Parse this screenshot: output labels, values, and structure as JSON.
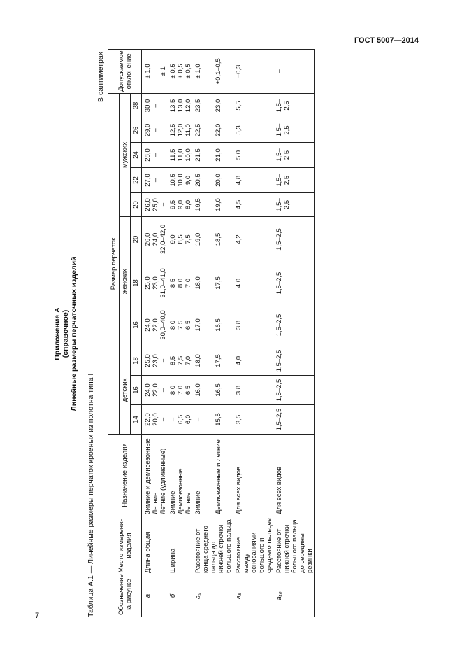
{
  "header": {
    "standard": "ГОСТ 5007—2014"
  },
  "title": {
    "appendix": "Приложение А",
    "note": "(справочное)",
    "name": "Линейные размеры перчаточных изделий"
  },
  "table": {
    "caption": "Таблица А.1 — Линейные размеры перчаток кроеных из полотна типа I",
    "units": "В сантиметрах",
    "headers": {
      "designation": "Обозначение на рисунке",
      "place": "Место измерения изделия",
      "purpose": "Назначение изделия",
      "size": "Размер перчаток",
      "tolerance": "Допускаемое отклонение",
      "groups": [
        {
          "name": "детских",
          "sizes": [
            "14",
            "16",
            "18"
          ]
        },
        {
          "name": "женских",
          "sizes": [
            "16",
            "18",
            "20"
          ]
        },
        {
          "name": "мужских",
          "sizes": [
            "20",
            "22",
            "24",
            "26",
            "28"
          ]
        }
      ]
    },
    "rows": [
      {
        "designation": "a",
        "place": "Длина общая",
        "lines": [
          {
            "purpose": "Зимние и демисезонные",
            "values": [
              "22,0",
              "24,0",
              "25,0",
              "24,0",
              "25,0",
              "26,0",
              "26,0",
              "27,0",
              "28,0",
              "29,0",
              "30,0"
            ],
            "tolerance": "± 1,0"
          },
          {
            "purpose": "Летние",
            "values": [
              "20,0",
              "22,0",
              "23,0",
              "22,0",
              "23,0",
              "24,0",
              "25,0",
              "–",
              "–",
              "–",
              "–"
            ],
            "tolerance": null
          },
          {
            "purpose": "Летние (удлиненные)",
            "values": [
              "–",
              "–",
              "–",
              "30,0–40,0",
              "31,0–41,0",
              "32,0–42,0",
              "–",
              null,
              null,
              null,
              null
            ],
            "tolerance": "± 1"
          }
        ]
      },
      {
        "designation": "б",
        "place": "Ширина",
        "lines": [
          {
            "purpose": "Зимние",
            "values": [
              "–",
              "8,0",
              "8,5",
              "8,0",
              "8,5",
              "9,0",
              "9,5",
              "10,5",
              "11,5",
              "12,5",
              "13,5"
            ],
            "tolerance": "± 0,5"
          },
          {
            "purpose": "Демисезонные",
            "values": [
              "6,5",
              "7,0",
              "7,5",
              "7,5",
              "8,0",
              "8,5",
              "9,0",
              "10,0",
              "11,0",
              "12,0",
              "13,0"
            ],
            "tolerance": "± 0,5"
          },
          {
            "purpose": "Летние",
            "values": [
              "6,0",
              "6,5",
              "7,0",
              "6,5",
              "7,0",
              "7,5",
              "8,0",
              "9,0",
              "10,0",
              "11,0",
              "12,0"
            ],
            "tolerance": "± 0,5"
          }
        ]
      },
      {
        "designation": "a₉",
        "place": "Расстояние от конца среднего пальца до нижней строчки большого пальца",
        "lines": [
          {
            "purpose": "Зимние",
            "values": [
              "–",
              "16,0",
              "18,0",
              "17,0",
              "18,0",
              "19,0",
              "19,5",
              "20,5",
              "21,5",
              "22,5",
              "23,5"
            ],
            "tolerance": "± 1,0"
          },
          {
            "purpose": "Демисезонные и летние",
            "values": [
              "15,5",
              "16,5",
              "17,5",
              "16,5",
              "17,5",
              "18,5",
              "19,0",
              "20,0",
              "21,0",
              "22,0",
              "23,0"
            ],
            "tolerance": "+0,1–0,5"
          }
        ]
      },
      {
        "designation": "a₈",
        "place": "Расстояние между основаниями большого и среднего пальцев",
        "lines": [
          {
            "purpose": "Для всех видов",
            "values": [
              "3,5",
              "3,8",
              "4,0",
              "3,8",
              "4,0",
              "4,2",
              "4,5",
              "4,8",
              "5,0",
              "5,3",
              "5,5"
            ],
            "tolerance": "±0,3"
          }
        ]
      },
      {
        "designation": "a₁₀",
        "place": "Расстояние от нижней строчки большого пальца до середины резинки",
        "lines": [
          {
            "purpose": "Для всех видов",
            "values": [
              "1,5–2,5",
              "1,5–2,5",
              "1,5–2,5",
              "1,5–2,5",
              "1,5–2,5",
              "1,5–2,5",
              "1,5–2,5",
              "1,5–2,5",
              "1,5–2,5",
              "1,5–2,5",
              "1,5–2,5"
            ],
            "tolerance": "–"
          }
        ]
      }
    ]
  },
  "page_number": "7"
}
